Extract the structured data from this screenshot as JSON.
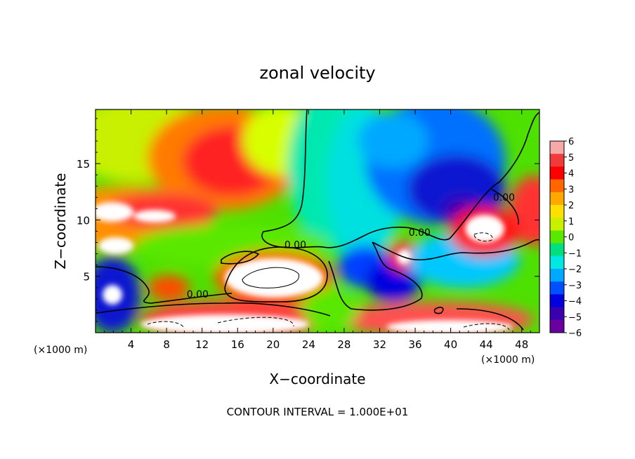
{
  "chart_data": {
    "type": "heatmap",
    "title": "zonal velocity",
    "xlabel": "X−coordinate",
    "ylabel": "Z−coordinate",
    "x_unit_label": "(×1000 m)",
    "x_unit_label_right": "(×1000 m)",
    "footer": "CONTOUR INTERVAL = 1.000E+01",
    "xlim": [
      0,
      50
    ],
    "ylim": [
      0,
      19.8
    ],
    "x_ticks": [
      4,
      8,
      12,
      16,
      20,
      24,
      28,
      32,
      36,
      40,
      44,
      48
    ],
    "y_ticks": [
      5,
      10,
      15
    ],
    "colorbar": {
      "range": [
        -6,
        6
      ],
      "labels": [
        "6",
        "5",
        "4",
        "3",
        "2",
        "1",
        "0",
        "−1",
        "−2",
        "−3",
        "−4",
        "−5",
        "−6"
      ],
      "colors": [
        "#f7a8a8",
        "#f23a3a",
        "#ff0000",
        "#ff6600",
        "#ffa800",
        "#ffe000",
        "#c8f000",
        "#5ae800",
        "#00e080",
        "#00e8e0",
        "#00a8ff",
        "#0050ff",
        "#0000e0",
        "#3a00b0",
        "#6a00a0"
      ]
    },
    "contour_labels": [
      {
        "text": "0.00",
        "x": 11.5,
        "y": 3.1
      },
      {
        "text": "0.00",
        "x": 22.5,
        "y": 7.5
      },
      {
        "text": "0.00",
        "x": 36.5,
        "y": 8.6
      },
      {
        "text": "0.00",
        "x": 46.0,
        "y": 11.7
      }
    ]
  }
}
